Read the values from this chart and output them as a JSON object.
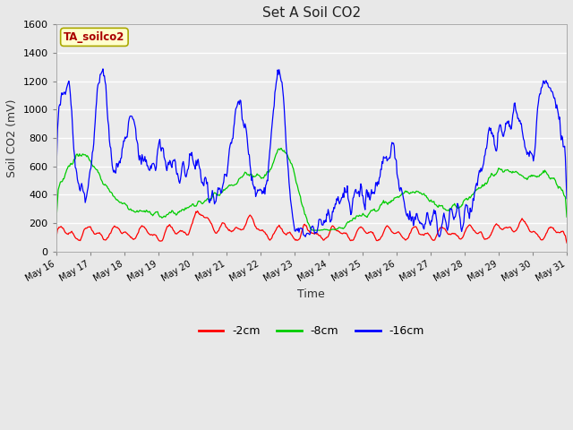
{
  "title": "Set A Soil CO2",
  "xlabel": "Time",
  "ylabel": "Soil CO2 (mV)",
  "ylim": [
    0,
    1600
  ],
  "yticks": [
    0,
    200,
    400,
    600,
    800,
    1000,
    1200,
    1400,
    1600
  ],
  "bg_color": "#e8e8e8",
  "plot_bg_color": "#ebebeb",
  "legend_label": "TA_soilco2",
  "legend_bg": "#ffffcc",
  "legend_border": "#aaa800",
  "series": {
    "red": {
      "label": "-2cm",
      "color": "#ff0000"
    },
    "green": {
      "label": "-8cm",
      "color": "#00cc00"
    },
    "blue": {
      "label": "-16cm",
      "color": "#0000ff"
    }
  },
  "x_ticks": [
    16,
    17,
    18,
    19,
    20,
    21,
    22,
    23,
    24,
    25,
    26,
    27,
    28,
    29,
    30,
    31
  ],
  "x_tick_labels": [
    "May 16",
    "May 17",
    "May 18",
    "May 19",
    "May 20",
    "May 21",
    "May 22",
    "May 23",
    "May 24",
    "May 25",
    "May 26",
    "May 27",
    "May 28",
    "May 29",
    "May 30",
    "May 31"
  ]
}
